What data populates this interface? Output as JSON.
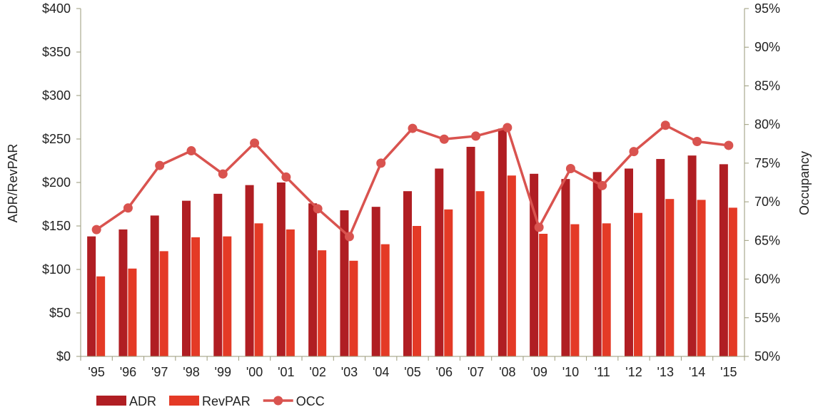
{
  "chart_data": {
    "type": "bar",
    "categories": [
      "'95",
      "'96",
      "'97",
      "'98",
      "'99",
      "'00",
      "'01",
      "'02",
      "'03",
      "'04",
      "'05",
      "'06",
      "'07",
      "'08",
      "'09",
      "'10",
      "'11",
      "'12",
      "'13",
      "'14",
      "'15"
    ],
    "series": [
      {
        "name": "ADR",
        "type": "bar",
        "axis": "left",
        "color": "#b01e23",
        "values": [
          138,
          146,
          162,
          179,
          187,
          197,
          200,
          176,
          168,
          172,
          190,
          216,
          241,
          262,
          210,
          204,
          212,
          216,
          227,
          231,
          221
        ]
      },
      {
        "name": "RevPAR",
        "type": "bar",
        "axis": "left",
        "color": "#e43a26",
        "values": [
          92,
          101,
          121,
          137,
          138,
          153,
          146,
          122,
          110,
          129,
          150,
          169,
          190,
          208,
          141,
          152,
          153,
          165,
          181,
          180,
          171
        ]
      },
      {
        "name": "OCC",
        "type": "line",
        "axis": "right",
        "color": "#d9534f",
        "values": [
          66.4,
          69.2,
          74.7,
          76.6,
          73.6,
          77.6,
          73.2,
          69.1,
          65.5,
          75.0,
          79.5,
          78.1,
          78.5,
          79.6,
          66.7,
          74.3,
          72.1,
          76.5,
          79.9,
          77.8,
          77.3
        ]
      }
    ],
    "ylabel": "ADR/RevPAR",
    "y2label": "Occupancy",
    "ylim": [
      0,
      400
    ],
    "y2lim": [
      50,
      95
    ],
    "yticks": [
      "$0",
      "$50",
      "$100",
      "$150",
      "$200",
      "$250",
      "$300",
      "$350",
      "$400"
    ],
    "y2ticks": [
      "50%",
      "55%",
      "60%",
      "65%",
      "70%",
      "75%",
      "80%",
      "85%",
      "90%",
      "95%"
    ],
    "grid": false,
    "legend_position": "bottom-left"
  }
}
